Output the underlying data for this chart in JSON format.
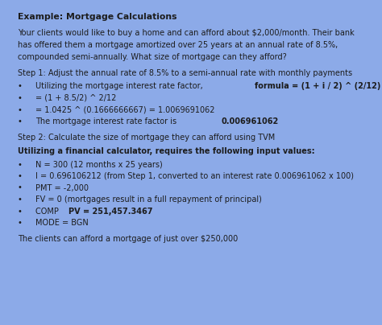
{
  "background_color": "#ffffff",
  "box_color": "#8caae8",
  "text_color": "#1a1a2e",
  "fig_bg": "#ffffff",
  "title": "Example: Mortgage Calculations",
  "intro_lines": [
    "Your clients would like to buy a home and can afford about $2,000/month. Their bank",
    "has offered them a mortgage amortized over 25 years at an annual rate of 8.5%,",
    "compounded semi-annually. What size of mortgage can they afford?"
  ],
  "step1_header": "Step 1: Adjust the annual rate of 8.5% to a semi-annual rate with monthly payments",
  "step2_header": "Step 2: Calculate the size of mortgage they can afford using TVM",
  "step2_bold": "Utilizing a financial calculator, requires the following input values:",
  "footer": "The clients can afford a mortgage of just over $250,000",
  "dark": "#1c1c1c"
}
